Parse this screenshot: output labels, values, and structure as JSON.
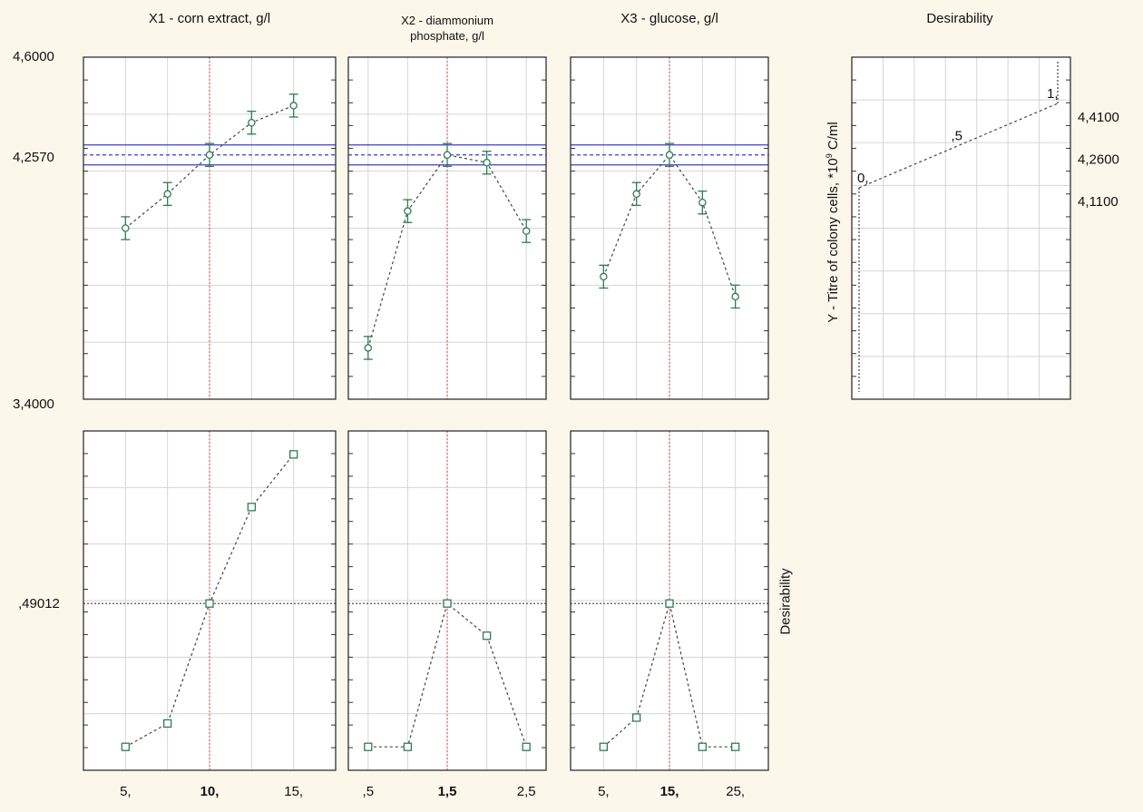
{
  "column_headers": {
    "x1": "X1 - corn extract, g/l",
    "x2_line1": "X2 - diammonium",
    "x2_line2": "phosphate, g/l",
    "x3": "X3 - glucose, g/l",
    "desirability": "Desirability"
  },
  "top_axis_labels": {
    "max": "4,6000",
    "mid": "4,2570",
    "min": "3,4000"
  },
  "bottom_axis_label": ",49012",
  "ylabel_response": "Y - Titre of colony cells, *10",
  "ylabel_response_sup": "9",
  "ylabel_response_unit": " C/ml",
  "ylabel_desirability": "Desirability",
  "colors": {
    "background": "#fbf7ea",
    "panel": "#ffffff",
    "series": "#2e7d4f",
    "limit_line": "#3b3bd1",
    "optimum_line": "#d9434f",
    "grid": "#d5d5d5"
  },
  "chart_data": [
    {
      "type": "line",
      "panel": "response-x1",
      "title": "X1 - corn extract, g/l",
      "x": [
        5,
        7.5,
        10,
        12.5,
        15
      ],
      "y": [
        4.0,
        4.12,
        4.257,
        4.37,
        4.43
      ],
      "error": [
        0.04,
        0.04,
        0.04,
        0.04,
        0.04
      ],
      "optimum_x": 10,
      "predicted": 4.257,
      "ci": [
        4.222,
        4.292
      ],
      "ylim": [
        3.4,
        4.6
      ],
      "xlim": [
        2.5,
        17.5
      ],
      "grid": true
    },
    {
      "type": "line",
      "panel": "response-x2",
      "title": "X2 - diammonium phosphate, g/l",
      "x": [
        0.5,
        1.0,
        1.5,
        2.0,
        2.5
      ],
      "y": [
        3.58,
        4.06,
        4.257,
        4.23,
        3.99
      ],
      "error": [
        0.04,
        0.04,
        0.04,
        0.04,
        0.04
      ],
      "optimum_x": 1.5,
      "predicted": 4.257,
      "ci": [
        4.222,
        4.292
      ],
      "ylim": [
        3.4,
        4.6
      ],
      "xlim": [
        0.25,
        2.75
      ],
      "grid": true
    },
    {
      "type": "line",
      "panel": "response-x3",
      "title": "X3 - glucose, g/l",
      "x": [
        5,
        10,
        15,
        20,
        25
      ],
      "y": [
        3.83,
        4.12,
        4.257,
        4.09,
        3.76
      ],
      "error": [
        0.04,
        0.04,
        0.04,
        0.04,
        0.04
      ],
      "optimum_x": 15,
      "predicted": 4.257,
      "ci": [
        4.222,
        4.292
      ],
      "ylim": [
        3.4,
        4.6
      ],
      "xlim": [
        0,
        30
      ],
      "grid": true
    },
    {
      "type": "line",
      "panel": "desirability-function",
      "title": "Desirability",
      "ylabel": "Y - Titre of colony cells, *10⁹ C/ml",
      "points": [
        {
          "label": "0,",
          "desirability": 0.0,
          "y": 4.11
        },
        {
          "label": ",5",
          "desirability": 0.5,
          "y": 4.26
        },
        {
          "label": "1,",
          "desirability": 1.0,
          "y": 4.41
        }
      ],
      "y_ticks": [
        "4,4100",
        "4,2600",
        "4,1100"
      ],
      "grid": true
    },
    {
      "type": "line",
      "panel": "desirability-x1",
      "x": [
        5,
        7.5,
        10,
        12.5,
        15
      ],
      "y": [
        0.0,
        0.08,
        0.49012,
        0.82,
        1.0
      ],
      "optimum_x": 10,
      "desirability": 0.49012,
      "x_ticks": [
        "5,",
        "10,",
        "15,"
      ],
      "x_tick_values": [
        5,
        10,
        15
      ],
      "optimum_tick": "10,",
      "xlim": [
        2.5,
        17.5
      ],
      "grid": true
    },
    {
      "type": "line",
      "panel": "desirability-x2",
      "x": [
        0.5,
        1.0,
        1.5,
        2.0,
        2.5
      ],
      "y": [
        0.0,
        0.0,
        0.49012,
        0.38,
        0.0
      ],
      "optimum_x": 1.5,
      "desirability": 0.49012,
      "x_ticks": [
        ",5",
        "1,5",
        "2,5"
      ],
      "x_tick_values": [
        0.5,
        1.5,
        2.5
      ],
      "optimum_tick": "1,5",
      "xlim": [
        0.25,
        2.75
      ],
      "grid": true
    },
    {
      "type": "line",
      "panel": "desirability-x3",
      "x": [
        5,
        10,
        15,
        20,
        25
      ],
      "y": [
        0.0,
        0.1,
        0.49012,
        0.0,
        0.0
      ],
      "optimum_x": 15,
      "desirability": 0.49012,
      "x_ticks": [
        "5,",
        "15,",
        "25,"
      ],
      "x_tick_values": [
        5,
        15,
        25
      ],
      "optimum_tick": "15,",
      "xlim": [
        0,
        30
      ],
      "grid": true
    }
  ]
}
